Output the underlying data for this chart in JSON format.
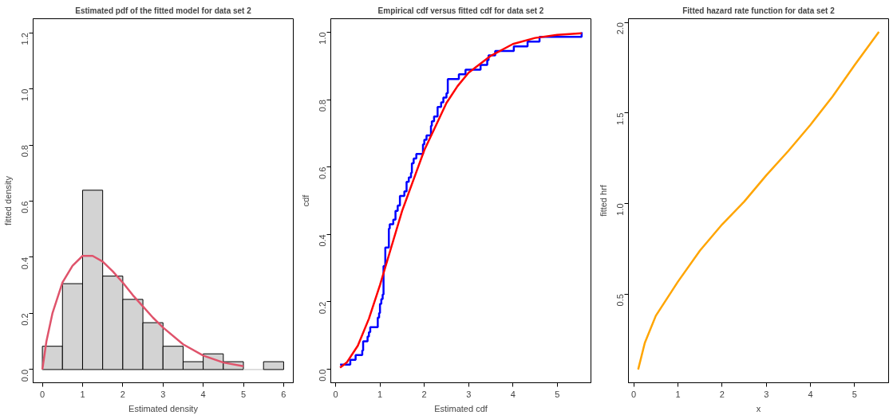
{
  "chart_data": [
    {
      "type": "histogram",
      "title": "Estimated pdf of the fitted model for data set 2",
      "xlabel": "Estimated density",
      "ylabel": "fitted density",
      "bins": [
        0,
        0.5,
        1,
        1.5,
        2,
        2.5,
        3,
        3.5,
        4,
        4.5,
        5,
        5.5,
        6
      ],
      "values": [
        0.083,
        0.306,
        0.639,
        0.333,
        0.25,
        0.167,
        0.083,
        0.028,
        0.056,
        0.028,
        0,
        0.028
      ],
      "color": "#d3d3d3",
      "xlim": [
        -0.23,
        6.24
      ],
      "ylim": [
        -0.047,
        1.25
      ],
      "xticks": [
        0,
        1,
        2,
        3,
        4,
        5,
        6
      ],
      "yticks": [
        {
          "value": 0,
          "label": "0.0"
        },
        0.2,
        0.4,
        0.6,
        0.8,
        {
          "value": 1,
          "label": "1.0"
        },
        1.2
      ],
      "series": [
        {
          "type": "line",
          "color": "#df536b",
          "x": [
            0,
            0.1,
            0.25,
            0.5,
            0.75,
            1,
            1.25,
            1.5,
            1.75,
            2,
            2.25,
            2.5,
            2.75,
            3,
            3.5,
            4,
            4.5,
            5
          ],
          "values": [
            0,
            0.1,
            0.2,
            0.31,
            0.37,
            0.405,
            0.405,
            0.385,
            0.35,
            0.31,
            0.265,
            0.225,
            0.185,
            0.15,
            0.09,
            0.05,
            0.025,
            0.012
          ]
        }
      ]
    },
    {
      "type": "line",
      "title": "Empirical cdf versus fitted cdf for data set 2",
      "xlabel": "Estimated cdf",
      "ylabel": "cdf",
      "xlim": [
        -0.11,
        5.76
      ],
      "ylim": [
        -0.04,
        1.04
      ],
      "xticks": [
        0,
        1,
        2,
        3,
        4,
        5
      ],
      "yticks": [
        {
          "value": 0,
          "label": "0.0"
        },
        0.2,
        0.4,
        0.6,
        0.8,
        {
          "value": 1,
          "label": "1.0"
        }
      ],
      "series": [
        {
          "type": "step",
          "color": "#0000ff",
          "x": [
            0.1,
            0.33,
            0.45,
            0.6,
            0.62,
            0.72,
            0.75,
            0.78,
            0.95,
            0.98,
            1.0,
            1.03,
            1.06,
            1.08,
            1.12,
            1.2,
            1.22,
            1.3,
            1.35,
            1.4,
            1.45,
            1.55,
            1.6,
            1.65,
            1.7,
            1.72,
            1.76,
            1.82,
            1.97,
            2.0,
            2.05,
            2.15,
            2.17,
            2.22,
            2.3,
            2.38,
            2.43,
            2.5,
            2.53,
            2.78,
            2.93,
            3.27,
            3.42,
            3.45,
            3.6,
            4.02,
            4.33,
            4.6,
            5.55
          ],
          "values": [
            0.014,
            0.028,
            0.042,
            0.056,
            0.083,
            0.097,
            0.11,
            0.125,
            0.153,
            0.167,
            0.194,
            0.208,
            0.222,
            0.306,
            0.361,
            0.417,
            0.43,
            0.444,
            0.47,
            0.486,
            0.514,
            0.528,
            0.556,
            0.569,
            0.583,
            0.611,
            0.625,
            0.639,
            0.667,
            0.681,
            0.694,
            0.722,
            0.736,
            0.75,
            0.778,
            0.792,
            0.806,
            0.819,
            0.861,
            0.875,
            0.889,
            0.903,
            0.917,
            0.931,
            0.944,
            0.958,
            0.972,
            0.986,
            1.0
          ]
        },
        {
          "type": "line",
          "color": "#ff0000",
          "x": [
            0.1,
            0.25,
            0.5,
            0.75,
            1,
            1.25,
            1.5,
            1.75,
            2,
            2.25,
            2.5,
            2.75,
            3,
            3.5,
            4,
            4.5,
            5,
            5.55
          ],
          "values": [
            0.005,
            0.02,
            0.07,
            0.15,
            0.25,
            0.36,
            0.47,
            0.56,
            0.65,
            0.72,
            0.79,
            0.84,
            0.88,
            0.93,
            0.965,
            0.983,
            0.992,
            0.997
          ]
        }
      ]
    },
    {
      "type": "line",
      "title": "Fitted hazard rate function for data set 2",
      "xlabel": "x",
      "ylabel": "fitted hrf",
      "xlim": [
        -0.12,
        5.77
      ],
      "ylim": [
        0.01,
        2.02
      ],
      "xticks": [
        0,
        1,
        2,
        3,
        4,
        5
      ],
      "yticks": [
        0.5,
        {
          "value": 1,
          "label": "1.0"
        },
        1.5,
        {
          "value": 2,
          "label": "2.0"
        }
      ],
      "series": [
        {
          "type": "line",
          "color": "#ffa500",
          "x": [
            0.1,
            0.25,
            0.5,
            1,
            1.5,
            2,
            2.5,
            3,
            3.5,
            4,
            4.5,
            5,
            5.55
          ],
          "values": [
            0.083,
            0.23,
            0.38,
            0.568,
            0.74,
            0.884,
            1.01,
            1.155,
            1.29,
            1.434,
            1.59,
            1.764,
            1.947
          ]
        }
      ]
    }
  ]
}
